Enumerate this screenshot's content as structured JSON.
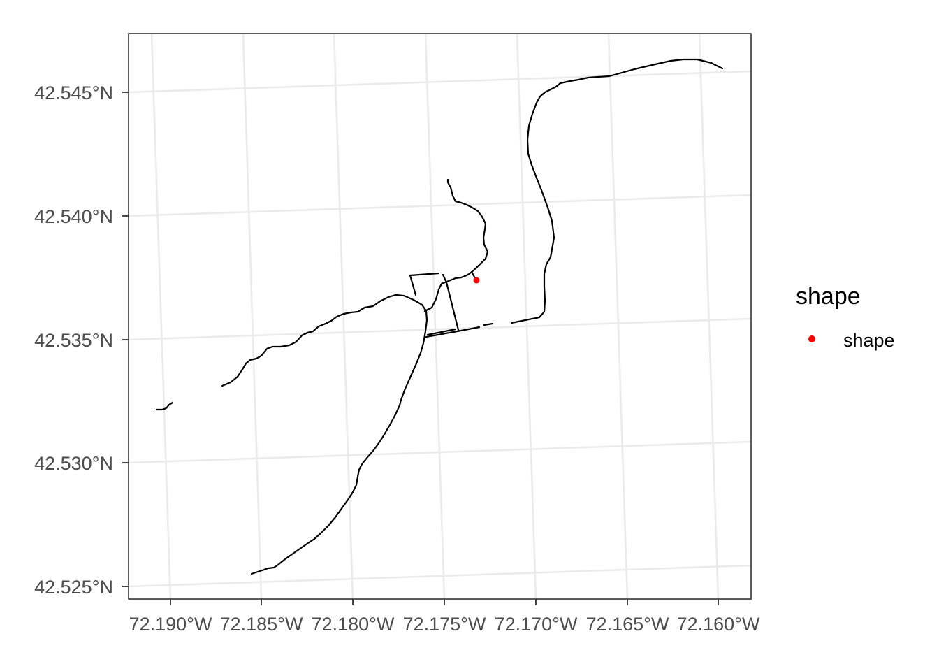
{
  "map": {
    "type": "map-plot",
    "x_axis": {
      "ticks": [
        {
          "label": "72.190°W"
        },
        {
          "label": "72.185°W"
        },
        {
          "label": "72.180°W"
        },
        {
          "label": "72.175°W"
        },
        {
          "label": "72.170°W"
        },
        {
          "label": "72.165°W"
        },
        {
          "label": "72.160°W"
        }
      ]
    },
    "y_axis": {
      "ticks": [
        {
          "label": "42.545°N"
        },
        {
          "label": "42.540°N"
        },
        {
          "label": "42.535°N"
        },
        {
          "label": "42.530°N"
        },
        {
          "label": "42.525°N"
        }
      ]
    },
    "legend": {
      "title": "shape",
      "items": [
        {
          "label": "shape",
          "color": "#ff0000"
        }
      ]
    },
    "colors": {
      "lines": "#000000",
      "point": "#ff0000",
      "grid": "#ebebeb",
      "panel_border": "#333333"
    },
    "features": {
      "point": {
        "lon": -72.173,
        "lat": 42.5374
      }
    }
  }
}
